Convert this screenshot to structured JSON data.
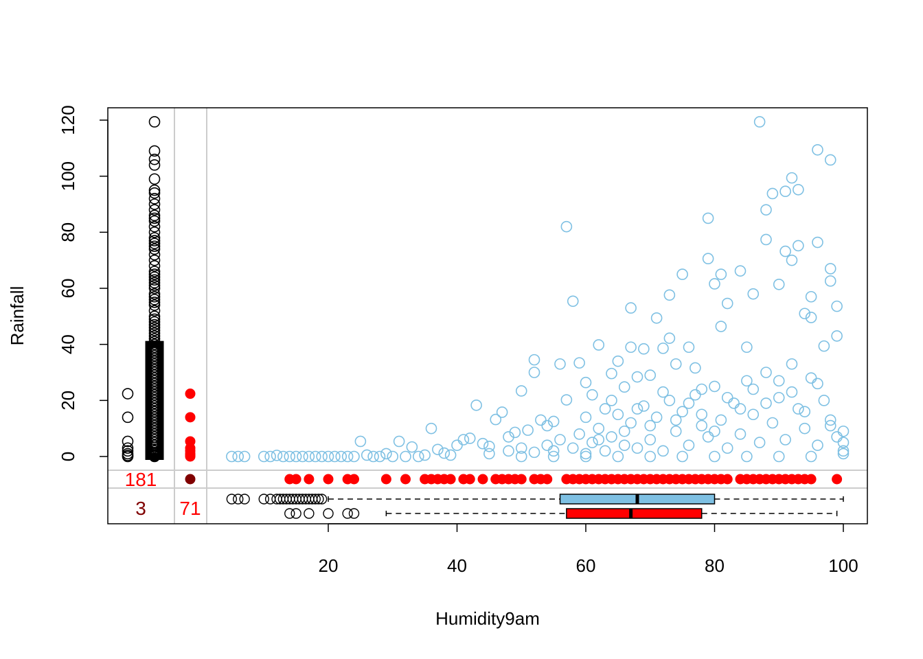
{
  "chart_data": {
    "type": "scatter",
    "title": "",
    "xlabel": "Humidity9am",
    "ylabel": "Rainfall",
    "xlim": [
      0,
      100
    ],
    "ylim": [
      -20,
      120
    ],
    "xticks": [
      "20",
      "40",
      "60",
      "80",
      "100"
    ],
    "xtick_values": [
      20,
      40,
      60,
      80,
      100
    ],
    "yticks": [
      "0",
      "20",
      "40",
      "60",
      "80",
      "100",
      "120"
    ],
    "ytick_values": [
      0,
      20,
      40,
      60,
      80,
      100,
      120
    ],
    "grid": false,
    "colors": {
      "observed": "#7ec0e3",
      "missing": "#ff0000",
      "both_missing": "#800000",
      "axis": "#000000",
      "separator": "#cccccc"
    },
    "missing_counts": {
      "humidity_missing": "181",
      "rainfall_missing": "71",
      "both_missing": "3"
    },
    "series": [
      {
        "kind": "observed_points",
        "points": [
          [
            5,
            0
          ],
          [
            6,
            0
          ],
          [
            7,
            0
          ],
          [
            10,
            0
          ],
          [
            11,
            0
          ],
          [
            12,
            0.4
          ],
          [
            13,
            0
          ],
          [
            14,
            0
          ],
          [
            15,
            0
          ],
          [
            16,
            0
          ],
          [
            17,
            0
          ],
          [
            18,
            0
          ],
          [
            19,
            0
          ],
          [
            20,
            0
          ],
          [
            21,
            0
          ],
          [
            22,
            0
          ],
          [
            23,
            0
          ],
          [
            24,
            0
          ],
          [
            25,
            5.4
          ],
          [
            26,
            0.5
          ],
          [
            27,
            0
          ],
          [
            28,
            0
          ],
          [
            29,
            1
          ],
          [
            30,
            0
          ],
          [
            31,
            5.4
          ],
          [
            32,
            0
          ],
          [
            33,
            3.4
          ],
          [
            34,
            0
          ],
          [
            35,
            0.5
          ],
          [
            36,
            10
          ],
          [
            37,
            2.5
          ],
          [
            38,
            1.2
          ],
          [
            39,
            0.5
          ],
          [
            40,
            4
          ],
          [
            41,
            6
          ],
          [
            42,
            6.5
          ],
          [
            43,
            18.3
          ],
          [
            44,
            4.6
          ],
          [
            45,
            3.6
          ],
          [
            46,
            13.2
          ],
          [
            47,
            15.8
          ],
          [
            48,
            7
          ],
          [
            49,
            8.6
          ],
          [
            50,
            23.4
          ],
          [
            51,
            9.4
          ],
          [
            52,
            34.5
          ],
          [
            52,
            30
          ],
          [
            53,
            13
          ],
          [
            54,
            11
          ],
          [
            55,
            12.5
          ],
          [
            56,
            33
          ],
          [
            57,
            82
          ],
          [
            57,
            20.2
          ],
          [
            58,
            55.4
          ],
          [
            59,
            33.4
          ],
          [
            60,
            26.4
          ],
          [
            61,
            22
          ],
          [
            62,
            39.8
          ],
          [
            63,
            17
          ],
          [
            64,
            29.6
          ],
          [
            65,
            34
          ],
          [
            66,
            24.8
          ],
          [
            67,
            53
          ],
          [
            67,
            39
          ],
          [
            68,
            28.4
          ],
          [
            69,
            38.4
          ],
          [
            70,
            29
          ],
          [
            71,
            49.4
          ],
          [
            72,
            38.6
          ],
          [
            73,
            57.6
          ],
          [
            73,
            42.2
          ],
          [
            74,
            33
          ],
          [
            75,
            65
          ],
          [
            76,
            39
          ],
          [
            77,
            31.6
          ],
          [
            78,
            24
          ],
          [
            79,
            85
          ],
          [
            79,
            70.6
          ],
          [
            80,
            61.6
          ],
          [
            81,
            65
          ],
          [
            81,
            46.4
          ],
          [
            82,
            54.6
          ],
          [
            84,
            66.2
          ],
          [
            85,
            39
          ],
          [
            86,
            58
          ],
          [
            87,
            119.4
          ],
          [
            88,
            88
          ],
          [
            88,
            77.4
          ],
          [
            89,
            93.8
          ],
          [
            90,
            61.4
          ],
          [
            91,
            94.6
          ],
          [
            91,
            73.2
          ],
          [
            92,
            99.4
          ],
          [
            92,
            70
          ],
          [
            93,
            95.2
          ],
          [
            93,
            75.2
          ],
          [
            94,
            51
          ],
          [
            95,
            57
          ],
          [
            95,
            49.6
          ],
          [
            96,
            109.4
          ],
          [
            96,
            76.4
          ],
          [
            97,
            39.4
          ],
          [
            98,
            105.8
          ],
          [
            98,
            67
          ],
          [
            98,
            62.6
          ],
          [
            99,
            53.6
          ],
          [
            99,
            43
          ],
          [
            100,
            9
          ],
          [
            100,
            5
          ],
          [
            100,
            2
          ],
          [
            45,
            1
          ],
          [
            48,
            2
          ],
          [
            50,
            3
          ],
          [
            52,
            1.5
          ],
          [
            54,
            4
          ],
          [
            55,
            2
          ],
          [
            56,
            6
          ],
          [
            58,
            3
          ],
          [
            59,
            8
          ],
          [
            60,
            1
          ],
          [
            61,
            5
          ],
          [
            62,
            10
          ],
          [
            63,
            2
          ],
          [
            64,
            7
          ],
          [
            65,
            15
          ],
          [
            66,
            4
          ],
          [
            67,
            12
          ],
          [
            68,
            3
          ],
          [
            69,
            18
          ],
          [
            70,
            6
          ],
          [
            71,
            14
          ],
          [
            72,
            2
          ],
          [
            73,
            20
          ],
          [
            74,
            9
          ],
          [
            75,
            16
          ],
          [
            76,
            4
          ],
          [
            77,
            22
          ],
          [
            78,
            11
          ],
          [
            79,
            7
          ],
          [
            80,
            25
          ],
          [
            81,
            13
          ],
          [
            82,
            3
          ],
          [
            83,
            19
          ],
          [
            84,
            8
          ],
          [
            85,
            27
          ],
          [
            86,
            15
          ],
          [
            87,
            5
          ],
          [
            88,
            30
          ],
          [
            89,
            12
          ],
          [
            90,
            21
          ],
          [
            91,
            6
          ],
          [
            92,
            33
          ],
          [
            93,
            17
          ],
          [
            94,
            10
          ],
          [
            95,
            28
          ],
          [
            96,
            4
          ],
          [
            97,
            20
          ],
          [
            98,
            13
          ],
          [
            99,
            7
          ],
          [
            100,
            1
          ],
          [
            60,
            14
          ],
          [
            62,
            6
          ],
          [
            64,
            20
          ],
          [
            66,
            9
          ],
          [
            68,
            17
          ],
          [
            70,
            11
          ],
          [
            72,
            23
          ],
          [
            74,
            13
          ],
          [
            76,
            19
          ],
          [
            78,
            15
          ],
          [
            80,
            9
          ],
          [
            82,
            21
          ],
          [
            84,
            17
          ],
          [
            86,
            24
          ],
          [
            88,
            19
          ],
          [
            90,
            27
          ],
          [
            92,
            23
          ],
          [
            94,
            16
          ],
          [
            96,
            26
          ],
          [
            98,
            11
          ],
          [
            85,
            0
          ],
          [
            90,
            0
          ],
          [
            95,
            0
          ],
          [
            70,
            0
          ],
          [
            75,
            0
          ],
          [
            80,
            0
          ],
          [
            65,
            0
          ],
          [
            60,
            0
          ],
          [
            55,
            0
          ],
          [
            50,
            0
          ]
        ]
      },
      {
        "kind": "humidity_missing_rainfall",
        "values": [
          0,
          0.2,
          0.4,
          0.6,
          1,
          1.4,
          2,
          2.6,
          3.2,
          4,
          5,
          6,
          7,
          8,
          9,
          10,
          11,
          12,
          13,
          14,
          15,
          16,
          17,
          18,
          19,
          20,
          21,
          22,
          23,
          24,
          25,
          26,
          27,
          28,
          29,
          30,
          31,
          32,
          33,
          34,
          35,
          36,
          37,
          38,
          39,
          40,
          41,
          42,
          43,
          44,
          45,
          46,
          47,
          48,
          49,
          50,
          52,
          54,
          55,
          56,
          57,
          58,
          60,
          61,
          62,
          63,
          64,
          65,
          66,
          68,
          70,
          72,
          74,
          75,
          76,
          77,
          78,
          80,
          82,
          84,
          85,
          86,
          88,
          90,
          92,
          94,
          95,
          99,
          104,
          106,
          109,
          119.4
        ]
      },
      {
        "kind": "both_missing_rainfall_black",
        "values": [
          0,
          0.4,
          1,
          2,
          3,
          5.4,
          14,
          22.4
        ]
      },
      {
        "kind": "rainfall_missing_red",
        "values": [
          0,
          0.5,
          1,
          2,
          3,
          5.4,
          14,
          22.4
        ]
      },
      {
        "kind": "humidity_when_rainfall_missing",
        "values": [
          14,
          15,
          17,
          20,
          23,
          24,
          29,
          32,
          35,
          36,
          37,
          38,
          39,
          41,
          42,
          44,
          46,
          47,
          48,
          49,
          50,
          52,
          53,
          54,
          57,
          58,
          59,
          60,
          61,
          62,
          63,
          64,
          65,
          66,
          67,
          68,
          69,
          70,
          71,
          72,
          73,
          74,
          75,
          76,
          77,
          78,
          79,
          80,
          81,
          82,
          84,
          85,
          86,
          87,
          88,
          89,
          90,
          91,
          92,
          93,
          94,
          95,
          99
        ]
      }
    ],
    "boxplots": [
      {
        "name": "observed",
        "whisker_low": 20,
        "q1": 56,
        "median": 68,
        "q3": 80,
        "whisker_high": 100,
        "outliers": [
          5,
          6,
          7,
          10,
          11,
          12,
          12.5,
          13,
          13.5,
          14,
          14.5,
          15,
          15.5,
          16,
          16.5,
          17,
          17.5,
          18,
          18.5,
          19
        ]
      },
      {
        "name": "rainfall_missing",
        "whisker_low": 29,
        "q1": 57,
        "median": 67,
        "q3": 78,
        "whisker_high": 99,
        "outliers": [
          14,
          15,
          17,
          20,
          23,
          24
        ]
      }
    ]
  }
}
